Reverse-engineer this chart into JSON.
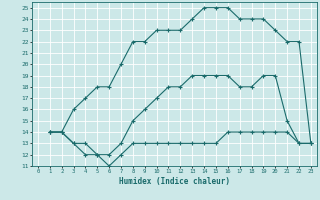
{
  "xlabel": "Humidex (Indice chaleur)",
  "xlim": [
    -0.5,
    23.5
  ],
  "ylim": [
    11,
    25.5
  ],
  "yticks": [
    11,
    12,
    13,
    14,
    15,
    16,
    17,
    18,
    19,
    20,
    21,
    22,
    23,
    24,
    25
  ],
  "xticks": [
    0,
    1,
    2,
    3,
    4,
    5,
    6,
    7,
    8,
    9,
    10,
    11,
    12,
    13,
    14,
    15,
    16,
    17,
    18,
    19,
    20,
    21,
    22,
    23
  ],
  "line_color": "#1a6b6b",
  "bg_color": "#cce8e8",
  "grid_color": "#ffffff",
  "line1_x": [
    1,
    2,
    3,
    4,
    5,
    6,
    7,
    8,
    9,
    10,
    11,
    12,
    13,
    14,
    15,
    16,
    17,
    18,
    19,
    20,
    21,
    22,
    23
  ],
  "line1_y": [
    14,
    14,
    13,
    13,
    12,
    12,
    13,
    15,
    16,
    17,
    18,
    18,
    19,
    19,
    19,
    19,
    18,
    18,
    19,
    19,
    15,
    13,
    13
  ],
  "line2_x": [
    1,
    2,
    3,
    4,
    5,
    6,
    7,
    8,
    9,
    10,
    11,
    12,
    13,
    14,
    15,
    16,
    17,
    18,
    19,
    20,
    21,
    22,
    23
  ],
  "line2_y": [
    14,
    14,
    16,
    17,
    18,
    18,
    20,
    22,
    22,
    23,
    23,
    23,
    24,
    25,
    25,
    25,
    24,
    24,
    24,
    23,
    22,
    22,
    13
  ],
  "line3_x": [
    1,
    2,
    3,
    4,
    5,
    6,
    7,
    8,
    9,
    10,
    11,
    12,
    13,
    14,
    15,
    16,
    17,
    18,
    19,
    20,
    21,
    22,
    23
  ],
  "line3_y": [
    14,
    14,
    13,
    12,
    12,
    11,
    12,
    13,
    13,
    13,
    13,
    13,
    13,
    13,
    13,
    14,
    14,
    14,
    14,
    14,
    14,
    13,
    13
  ]
}
